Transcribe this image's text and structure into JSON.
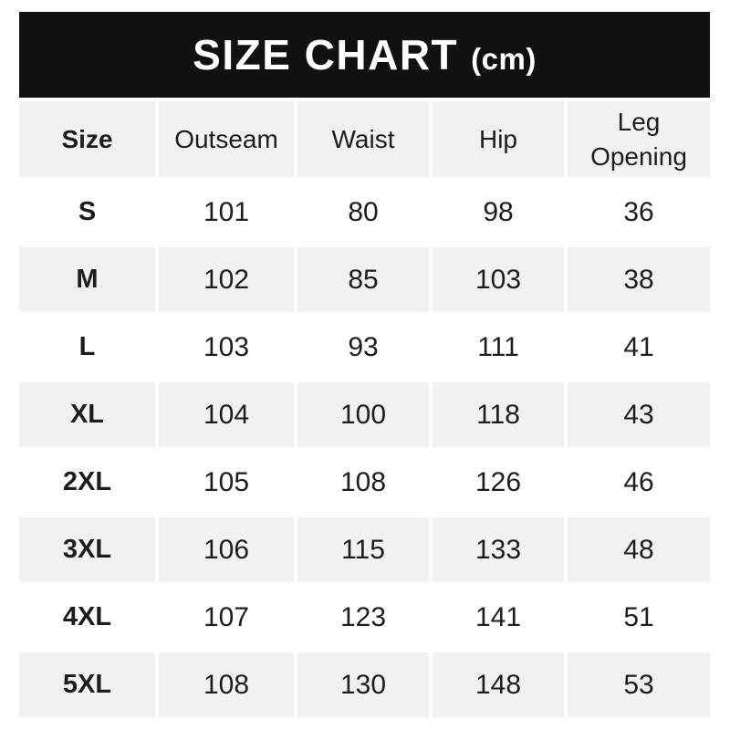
{
  "title": {
    "main": "SIZE CHART",
    "unit": "(cm)"
  },
  "colors": {
    "banner_background": "#111111",
    "row_alternate": "#f1f1f1",
    "text": "#1d1d1d",
    "banner_text": "#ffffff"
  },
  "chart_data": {
    "type": "table",
    "title": "SIZE CHART (cm)",
    "unit": "cm",
    "columns": [
      "Size",
      "Outseam",
      "Waist",
      "Hip",
      "Leg Opening"
    ],
    "rows": [
      {
        "size": "S",
        "values": [
          101,
          80,
          98,
          36
        ]
      },
      {
        "size": "M",
        "values": [
          102,
          85,
          103,
          38
        ]
      },
      {
        "size": "L",
        "values": [
          103,
          93,
          111,
          41
        ]
      },
      {
        "size": "XL",
        "values": [
          104,
          100,
          118,
          43
        ]
      },
      {
        "size": "2XL",
        "values": [
          105,
          108,
          126,
          46
        ]
      },
      {
        "size": "3XL",
        "values": [
          106,
          115,
          133,
          48
        ]
      },
      {
        "size": "4XL",
        "values": [
          107,
          123,
          141,
          51
        ]
      },
      {
        "size": "5XL",
        "values": [
          108,
          130,
          148,
          53
        ]
      }
    ]
  }
}
